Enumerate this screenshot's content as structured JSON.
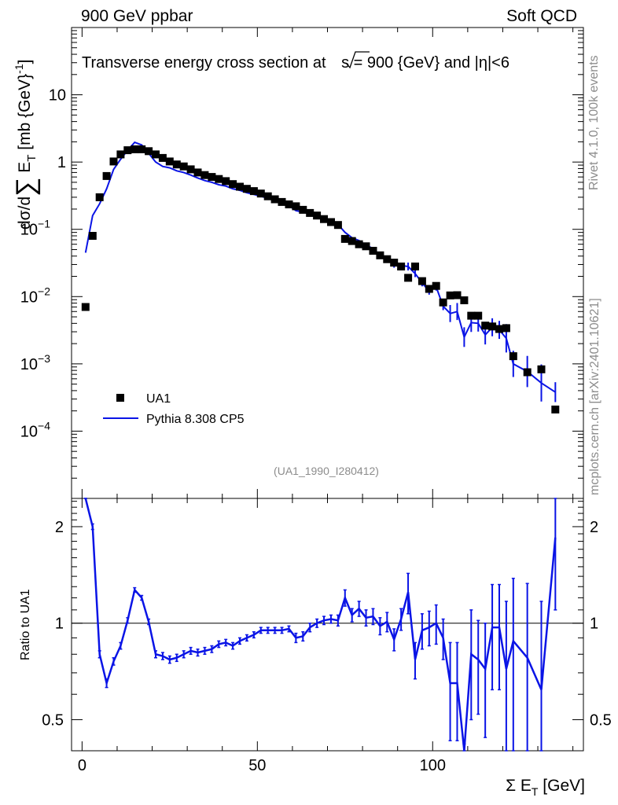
{
  "header": {
    "left": "900 GeV ppbar",
    "right": "Soft QCD"
  },
  "side_labels": {
    "rivet": "Rivet 4.1.0,  100k events",
    "mcplots": "mcplots.cern.ch [arXiv:2401.10621]"
  },
  "analysis_id": "(UA1_1990_I280412)",
  "colors": {
    "mc": "#0a14e6",
    "data": "#000000",
    "grey": "#8c8c8c"
  },
  "chart_data": {
    "type": "line",
    "title": "Transverse energy cross section at √s = 900 {GeV} and |η|<6",
    "title_parts": {
      "a": "Transverse energy cross section at ",
      "b": "s = 900 {GeV} and |",
      "c": "η",
      "d": "|<6"
    },
    "xlabel": "Σ E_T [GeV]",
    "xlabel_parts": {
      "pre": "Σ E",
      "sub": "T",
      "post": " [GeV]"
    },
    "ylabel": "dσ/d∑ E_T [mb {GeV}^-1]",
    "ylabel_parts": {
      "pre": "dσ/d",
      "sum": "∑",
      "e": " E",
      "sub": "T",
      "post": " [mb {GeV}",
      "sup": "-1",
      "close": "]"
    },
    "ratio_ylabel": "Ratio to UA1",
    "xlim": [
      -3,
      143
    ],
    "ylim": [
      1e-05,
      100
    ],
    "ratio_ylim": [
      0.4,
      2.45
    ],
    "x_ticks": [
      0,
      50,
      100
    ],
    "x_tick_labels": [
      "0",
      "50",
      "100"
    ],
    "y_ticks": [
      0.0001,
      0.001,
      0.01,
      0.1,
      1,
      10
    ],
    "y_tick_labels": [
      {
        "base": "10",
        "exp": "−4"
      },
      {
        "base": "10",
        "exp": "−3"
      },
      {
        "base": "10",
        "exp": "−2"
      },
      {
        "base": "10",
        "exp": "−1"
      },
      {
        "base": "1",
        "exp": ""
      },
      {
        "base": "10",
        "exp": ""
      }
    ],
    "ratio_ticks": [
      0.5,
      1,
      2
    ],
    "ratio_tick_labels": [
      "0.5",
      "1",
      "2"
    ],
    "legend": {
      "position": "bottom-left",
      "entries": [
        "UA1",
        "Pythia 8.308 CP5"
      ]
    },
    "series": [
      {
        "name": "UA1",
        "kind": "data",
        "x": [
          1,
          3,
          5,
          7,
          9,
          11,
          13,
          15,
          17,
          19,
          21,
          23,
          25,
          27,
          29,
          31,
          33,
          35,
          37,
          39,
          41,
          43,
          45,
          47,
          49,
          51,
          53,
          55,
          57,
          59,
          61,
          63,
          65,
          67,
          69,
          71,
          73,
          75,
          77,
          79,
          81,
          83,
          85,
          87,
          89,
          91,
          93,
          95,
          97,
          99,
          101,
          103,
          105,
          107,
          109,
          111,
          113,
          115,
          117,
          119,
          121,
          123,
          127,
          131,
          135
        ],
        "y": [
          0.007,
          0.08,
          0.3,
          0.62,
          1.02,
          1.3,
          1.5,
          1.55,
          1.55,
          1.45,
          1.3,
          1.15,
          1.02,
          0.92,
          0.86,
          0.78,
          0.7,
          0.64,
          0.6,
          0.56,
          0.52,
          0.47,
          0.43,
          0.4,
          0.37,
          0.34,
          0.31,
          0.28,
          0.255,
          0.235,
          0.22,
          0.195,
          0.175,
          0.16,
          0.142,
          0.128,
          0.116,
          0.072,
          0.067,
          0.06,
          0.056,
          0.048,
          0.041,
          0.036,
          0.032,
          0.028,
          0.019,
          0.028,
          0.017,
          0.013,
          0.0144,
          0.0082,
          0.0104,
          0.0105,
          0.0088,
          0.0052,
          0.0052,
          0.0037,
          0.0036,
          0.0033,
          0.0034,
          0.0013,
          0.00075,
          0.00083,
          0.00021
        ]
      },
      {
        "name": "Pythia 8.308 CP5",
        "kind": "mc",
        "x": [
          1,
          3,
          5,
          7,
          9,
          11,
          13,
          15,
          17,
          19,
          21,
          23,
          25,
          27,
          29,
          31,
          33,
          35,
          37,
          39,
          41,
          43,
          45,
          47,
          49,
          51,
          53,
          55,
          57,
          59,
          61,
          63,
          65,
          67,
          69,
          71,
          73,
          75,
          77,
          79,
          81,
          83,
          85,
          87,
          89,
          91,
          93,
          95,
          97,
          99,
          101,
          103,
          105,
          107,
          109,
          111,
          113,
          115,
          117,
          119,
          121,
          123,
          127,
          131,
          135
        ],
        "y": [
          0.045,
          0.16,
          0.24,
          0.4,
          0.78,
          1.1,
          1.5,
          1.96,
          1.8,
          1.35,
          1.0,
          0.86,
          0.82,
          0.74,
          0.7,
          0.64,
          0.58,
          0.53,
          0.5,
          0.46,
          0.44,
          0.4,
          0.38,
          0.35,
          0.33,
          0.31,
          0.29,
          0.27,
          0.245,
          0.225,
          0.19,
          0.18,
          0.17,
          0.16,
          0.144,
          0.128,
          0.118,
          0.09,
          0.075,
          0.068,
          0.058,
          0.052,
          0.041,
          0.037,
          0.029,
          0.029,
          0.028,
          0.022,
          0.016,
          0.012,
          0.014,
          0.0072,
          0.0056,
          0.006,
          0.0025,
          0.0041,
          0.004,
          0.0027,
          0.0035,
          0.0032,
          0.0024,
          0.001,
          0.00077,
          0.00052,
          0.00038
        ]
      }
    ],
    "ratio_series": {
      "name": "Pythia 8.308 CP5 / UA1",
      "x": [
        1,
        3,
        5,
        7,
        9,
        11,
        13,
        15,
        17,
        19,
        21,
        23,
        25,
        27,
        29,
        31,
        33,
        35,
        37,
        39,
        41,
        43,
        45,
        47,
        49,
        51,
        53,
        55,
        57,
        59,
        61,
        63,
        65,
        67,
        69,
        71,
        73,
        75,
        77,
        79,
        81,
        83,
        85,
        87,
        89,
        91,
        93,
        95,
        97,
        99,
        101,
        103,
        105,
        107,
        109,
        111,
        113,
        115,
        117,
        119,
        121,
        123,
        127,
        131,
        135
      ],
      "y": [
        2.6,
        2.0,
        0.8,
        0.65,
        0.76,
        0.85,
        1.02,
        1.27,
        1.2,
        1.01,
        0.8,
        0.79,
        0.77,
        0.78,
        0.8,
        0.82,
        0.81,
        0.82,
        0.83,
        0.86,
        0.87,
        0.85,
        0.88,
        0.9,
        0.92,
        0.95,
        0.95,
        0.95,
        0.95,
        0.96,
        0.9,
        0.91,
        0.97,
        1.0,
        1.02,
        1.03,
        1.02,
        1.2,
        1.06,
        1.11,
        1.04,
        1.05,
        0.98,
        1.01,
        0.89,
        1.03,
        1.25,
        0.77,
        0.95,
        0.97,
        1.0,
        0.9,
        0.65,
        0.65,
        0.3,
        0.8,
        0.77,
        0.72,
        0.97,
        0.97,
        0.72,
        0.88,
        0.78,
        0.62,
        1.85
      ],
      "err": [
        0.05,
        0.04,
        0.02,
        0.02,
        0.02,
        0.02,
        0.02,
        0.02,
        0.02,
        0.02,
        0.02,
        0.02,
        0.02,
        0.02,
        0.02,
        0.02,
        0.02,
        0.02,
        0.02,
        0.02,
        0.02,
        0.02,
        0.02,
        0.02,
        0.02,
        0.02,
        0.02,
        0.02,
        0.02,
        0.02,
        0.03,
        0.03,
        0.03,
        0.03,
        0.03,
        0.03,
        0.04,
        0.07,
        0.05,
        0.06,
        0.06,
        0.06,
        0.06,
        0.07,
        0.07,
        0.08,
        0.18,
        0.1,
        0.12,
        0.12,
        0.14,
        0.13,
        0.22,
        0.22,
        0.12,
        0.3,
        0.25,
        0.28,
        0.35,
        0.35,
        0.45,
        0.5,
        0.55,
        0.55,
        0.75
      ]
    }
  }
}
